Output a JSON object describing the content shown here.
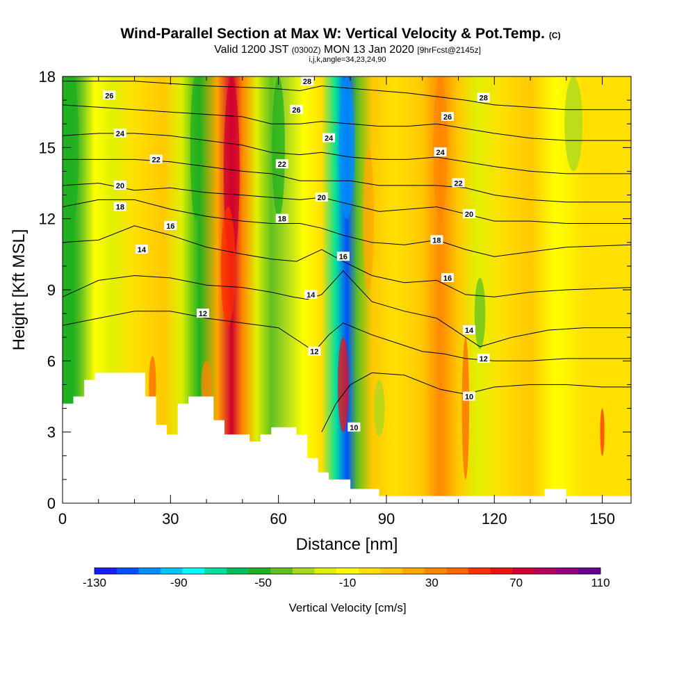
{
  "chart_data": {
    "type": "heatmap",
    "title": "Wind-Parallel Section at Max W: Vertical Velocity & Pot.Temp.",
    "title_mark": "(C)",
    "subtitle_parts": [
      "Valid 1200 JST",
      "(0300Z)",
      "MON 13 Jan 2020",
      "[9hrFcst@2145z]"
    ],
    "subtitle2": "i,j,k,angle=34,23,24,90",
    "xlabel": "Distance [nm]",
    "ylabel": "Height [Kft MSL]",
    "xlim": [
      0,
      158
    ],
    "ylim": [
      0,
      18
    ],
    "xticks": [
      "0",
      "30",
      "60",
      "90",
      "120",
      "150"
    ],
    "yticks": [
      "0",
      "3",
      "6",
      "9",
      "12",
      "15",
      "18"
    ],
    "x_tick_values": [
      0,
      30,
      60,
      90,
      120,
      150
    ],
    "y_tick_values": [
      0,
      3,
      6,
      9,
      12,
      15,
      18
    ],
    "colorbar": {
      "title": "Vertical Velocity [cm/s]",
      "ticks": [
        "-130",
        "-90",
        "-50",
        "-10",
        "30",
        "70",
        "110"
      ],
      "colors": [
        "#1a1aff",
        "#0050ff",
        "#0090ff",
        "#00c8ff",
        "#00ffff",
        "#00e0a0",
        "#00c060",
        "#20b020",
        "#60c020",
        "#a8d820",
        "#e0f000",
        "#ffff00",
        "#ffe000",
        "#ffc800",
        "#ffa800",
        "#ff8800",
        "#ff6800",
        "#ff3000",
        "#f01010",
        "#d00030",
        "#b00060",
        "#900080",
        "#6a0090"
      ]
    },
    "velocity_columns": [
      {
        "x": 1,
        "v": -50
      },
      {
        "x": 3,
        "v": -55
      },
      {
        "x": 5,
        "v": -45
      },
      {
        "x": 9,
        "v": -10
      },
      {
        "x": 14,
        "v": -20
      },
      {
        "x": 20,
        "v": 5
      },
      {
        "x": 28,
        "v": 10
      },
      {
        "x": 33,
        "v": -20
      },
      {
        "x": 38,
        "v": -50
      },
      {
        "x": 43,
        "v": 20
      },
      {
        "x": 47,
        "v": 70
      },
      {
        "x": 50,
        "v": 30
      },
      {
        "x": 54,
        "v": -20
      },
      {
        "x": 58,
        "v": -45
      },
      {
        "x": 62,
        "v": -35
      },
      {
        "x": 67,
        "v": -10
      },
      {
        "x": 72,
        "v": 5
      },
      {
        "x": 76,
        "v": -70
      },
      {
        "x": 79,
        "v": -110
      },
      {
        "x": 82,
        "v": -40
      },
      {
        "x": 86,
        "v": 10
      },
      {
        "x": 92,
        "v": 0
      },
      {
        "x": 100,
        "v": 15
      },
      {
        "x": 105,
        "v": 35
      },
      {
        "x": 110,
        "v": 10
      },
      {
        "x": 115,
        "v": -20
      },
      {
        "x": 122,
        "v": 0
      },
      {
        "x": 130,
        "v": 10
      },
      {
        "x": 137,
        "v": -15
      },
      {
        "x": 145,
        "v": 5
      },
      {
        "x": 152,
        "v": 0
      },
      {
        "x": 158,
        "v": 5
      }
    ],
    "terrain": [
      [
        0,
        4.2
      ],
      [
        3,
        4.2
      ],
      [
        3,
        4.5
      ],
      [
        6,
        4.5
      ],
      [
        6,
        5.2
      ],
      [
        9,
        5.2
      ],
      [
        9,
        5.5
      ],
      [
        23,
        5.5
      ],
      [
        23,
        4.5
      ],
      [
        26,
        4.5
      ],
      [
        26,
        3.3
      ],
      [
        29,
        3.3
      ],
      [
        29,
        2.9
      ],
      [
        32,
        2.9
      ],
      [
        32,
        4.2
      ],
      [
        35,
        4.2
      ],
      [
        35,
        4.5
      ],
      [
        42,
        4.5
      ],
      [
        42,
        3.5
      ],
      [
        45,
        3.5
      ],
      [
        45,
        2.9
      ],
      [
        52,
        2.9
      ],
      [
        52,
        2.6
      ],
      [
        55,
        2.6
      ],
      [
        55,
        2.9
      ],
      [
        58,
        2.9
      ],
      [
        58,
        3.2
      ],
      [
        65,
        3.2
      ],
      [
        65,
        2.9
      ],
      [
        68,
        2.9
      ],
      [
        68,
        1.9
      ],
      [
        71,
        1.9
      ],
      [
        71,
        1.3
      ],
      [
        74,
        1.3
      ],
      [
        74,
        1.0
      ],
      [
        80,
        1.0
      ],
      [
        80,
        0.6
      ],
      [
        88,
        0.6
      ],
      [
        88,
        0.3
      ],
      [
        134,
        0.3
      ],
      [
        134,
        0.6
      ],
      [
        140,
        0.6
      ],
      [
        140,
        0.3
      ],
      [
        158,
        0.3
      ]
    ],
    "theta_contours": [
      {
        "label": "10",
        "points": [
          [
            72,
            3
          ],
          [
            76,
            4.2
          ],
          [
            80,
            5.0
          ],
          [
            86,
            5.5
          ],
          [
            95,
            5.4
          ],
          [
            105,
            4.8
          ],
          [
            112,
            4.6
          ],
          [
            120,
            4.9
          ],
          [
            130,
            5.0
          ],
          [
            140,
            5.0
          ],
          [
            150,
            4.9
          ],
          [
            158,
            4.9
          ]
        ]
      },
      {
        "label": "12",
        "points": [
          [
            0,
            7.5
          ],
          [
            10,
            7.8
          ],
          [
            20,
            8.1
          ],
          [
            30,
            8.1
          ],
          [
            40,
            7.8
          ],
          [
            50,
            7.6
          ],
          [
            60,
            7.4
          ],
          [
            66,
            6.8
          ],
          [
            70,
            6.4
          ],
          [
            74,
            7.1
          ],
          [
            78,
            7.6
          ],
          [
            86,
            7.1
          ],
          [
            92,
            6.8
          ],
          [
            100,
            6.4
          ],
          [
            106,
            6.3
          ],
          [
            112,
            6.1
          ],
          [
            120,
            6.0
          ],
          [
            130,
            6.0
          ],
          [
            140,
            6.1
          ],
          [
            150,
            6.1
          ],
          [
            158,
            6.1
          ]
        ]
      },
      {
        "label": "14",
        "points": [
          [
            0,
            8.7
          ],
          [
            10,
            9.4
          ],
          [
            20,
            9.6
          ],
          [
            30,
            9.5
          ],
          [
            40,
            9.2
          ],
          [
            50,
            9.1
          ],
          [
            58,
            8.9
          ],
          [
            64,
            8.7
          ],
          [
            68,
            8.6
          ],
          [
            72,
            8.8
          ],
          [
            78,
            9.8
          ],
          [
            86,
            8.5
          ],
          [
            95,
            8.1
          ],
          [
            104,
            7.8
          ],
          [
            110,
            7.2
          ],
          [
            116,
            6.6
          ],
          [
            125,
            7.0
          ],
          [
            135,
            7.3
          ],
          [
            145,
            7.4
          ],
          [
            158,
            7.4
          ]
        ]
      },
      {
        "label": "16",
        "points": [
          [
            0,
            11.0
          ],
          [
            10,
            11.1
          ],
          [
            20,
            11.7
          ],
          [
            30,
            11.3
          ],
          [
            40,
            10.8
          ],
          [
            50,
            10.5
          ],
          [
            58,
            10.3
          ],
          [
            65,
            10.2
          ],
          [
            72,
            10.7
          ],
          [
            78,
            10.2
          ],
          [
            86,
            9.6
          ],
          [
            95,
            9.3
          ],
          [
            104,
            9.4
          ],
          [
            112,
            8.8
          ],
          [
            120,
            8.7
          ],
          [
            130,
            8.9
          ],
          [
            140,
            9.0
          ],
          [
            158,
            9.1
          ]
        ]
      },
      {
        "label": "18",
        "points": [
          [
            0,
            12.5
          ],
          [
            10,
            12.8
          ],
          [
            20,
            12.8
          ],
          [
            30,
            12.4
          ],
          [
            40,
            12.1
          ],
          [
            50,
            11.9
          ],
          [
            58,
            11.8
          ],
          [
            66,
            11.8
          ],
          [
            72,
            11.6
          ],
          [
            78,
            11.3
          ],
          [
            86,
            11.0
          ],
          [
            95,
            10.9
          ],
          [
            104,
            11.1
          ],
          [
            112,
            10.7
          ],
          [
            120,
            10.4
          ],
          [
            130,
            10.6
          ],
          [
            140,
            10.8
          ],
          [
            158,
            10.9
          ]
        ]
      },
      {
        "label": "20",
        "points": [
          [
            0,
            13.4
          ],
          [
            10,
            13.5
          ],
          [
            20,
            13.2
          ],
          [
            30,
            13.3
          ],
          [
            40,
            13.1
          ],
          [
            50,
            13.0
          ],
          [
            58,
            12.9
          ],
          [
            66,
            12.8
          ],
          [
            72,
            12.9
          ],
          [
            80,
            12.6
          ],
          [
            88,
            12.3
          ],
          [
            96,
            12.4
          ],
          [
            104,
            12.5
          ],
          [
            112,
            12.2
          ],
          [
            120,
            11.9
          ],
          [
            130,
            11.9
          ],
          [
            140,
            11.8
          ],
          [
            158,
            11.8
          ]
        ]
      },
      {
        "label": "22",
        "points": [
          [
            0,
            14.5
          ],
          [
            10,
            14.5
          ],
          [
            20,
            14.5
          ],
          [
            30,
            14.4
          ],
          [
            40,
            14.2
          ],
          [
            50,
            14.0
          ],
          [
            58,
            13.9
          ],
          [
            66,
            13.6
          ],
          [
            72,
            13.6
          ],
          [
            80,
            13.6
          ],
          [
            88,
            13.4
          ],
          [
            96,
            13.4
          ],
          [
            104,
            13.4
          ],
          [
            112,
            13.3
          ],
          [
            120,
            13.0
          ],
          [
            130,
            12.8
          ],
          [
            140,
            12.7
          ],
          [
            158,
            12.7
          ]
        ]
      },
      {
        "label": "24",
        "points": [
          [
            0,
            15.5
          ],
          [
            10,
            15.6
          ],
          [
            20,
            15.6
          ],
          [
            30,
            15.5
          ],
          [
            40,
            15.3
          ],
          [
            50,
            15.1
          ],
          [
            58,
            14.8
          ],
          [
            66,
            14.7
          ],
          [
            72,
            14.8
          ],
          [
            80,
            14.6
          ],
          [
            88,
            14.5
          ],
          [
            96,
            14.5
          ],
          [
            104,
            14.6
          ],
          [
            112,
            14.4
          ],
          [
            120,
            14.2
          ],
          [
            130,
            14.0
          ],
          [
            140,
            13.9
          ],
          [
            158,
            13.9
          ]
        ]
      },
      {
        "label": "26",
        "points": [
          [
            0,
            16.8
          ],
          [
            10,
            16.7
          ],
          [
            20,
            16.6
          ],
          [
            30,
            16.5
          ],
          [
            40,
            16.4
          ],
          [
            50,
            16.3
          ],
          [
            58,
            16.0
          ],
          [
            66,
            16.0
          ],
          [
            72,
            16.1
          ],
          [
            80,
            16.0
          ],
          [
            88,
            15.9
          ],
          [
            96,
            15.9
          ],
          [
            104,
            16.0
          ],
          [
            112,
            15.8
          ],
          [
            120,
            15.6
          ],
          [
            130,
            15.4
          ],
          [
            140,
            15.3
          ],
          [
            158,
            15.3
          ]
        ]
      },
      {
        "label": "28",
        "points": [
          [
            0,
            17.8
          ],
          [
            20,
            17.8
          ],
          [
            40,
            17.6
          ],
          [
            58,
            17.5
          ],
          [
            66,
            17.4
          ],
          [
            72,
            17.6
          ],
          [
            80,
            17.5
          ],
          [
            96,
            17.3
          ],
          [
            112,
            17.0
          ],
          [
            120,
            16.8
          ],
          [
            130,
            16.7
          ],
          [
            140,
            16.6
          ],
          [
            158,
            16.6
          ]
        ]
      }
    ],
    "contour_labels": [
      {
        "text": "26",
        "x": 13,
        "y": 17.2
      },
      {
        "text": "24",
        "x": 16,
        "y": 15.6
      },
      {
        "text": "22",
        "x": 26,
        "y": 14.5
      },
      {
        "text": "20",
        "x": 16,
        "y": 13.4
      },
      {
        "text": "18",
        "x": 16,
        "y": 12.5
      },
      {
        "text": "16",
        "x": 30,
        "y": 11.7
      },
      {
        "text": "14",
        "x": 22,
        "y": 10.7
      },
      {
        "text": "12",
        "x": 39,
        "y": 8.0
      },
      {
        "text": "28",
        "x": 68,
        "y": 17.8
      },
      {
        "text": "26",
        "x": 65,
        "y": 16.6
      },
      {
        "text": "24",
        "x": 74,
        "y": 15.4
      },
      {
        "text": "22",
        "x": 61,
        "y": 14.3
      },
      {
        "text": "20",
        "x": 72,
        "y": 12.9
      },
      {
        "text": "18",
        "x": 61,
        "y": 12.0
      },
      {
        "text": "16",
        "x": 78,
        "y": 10.4
      },
      {
        "text": "14",
        "x": 69,
        "y": 8.8
      },
      {
        "text": "12",
        "x": 70,
        "y": 6.4
      },
      {
        "text": "10",
        "x": 81,
        "y": 3.2
      },
      {
        "text": "28",
        "x": 117,
        "y": 17.1
      },
      {
        "text": "26",
        "x": 107,
        "y": 16.3
      },
      {
        "text": "24",
        "x": 105,
        "y": 14.8
      },
      {
        "text": "22",
        "x": 110,
        "y": 13.5
      },
      {
        "text": "20",
        "x": 113,
        "y": 12.2
      },
      {
        "text": "18",
        "x": 104,
        "y": 11.1
      },
      {
        "text": "16",
        "x": 107,
        "y": 9.5
      },
      {
        "text": "14",
        "x": 113,
        "y": 7.3
      },
      {
        "text": "12",
        "x": 117,
        "y": 6.1
      },
      {
        "text": "10",
        "x": 113,
        "y": 4.5
      }
    ]
  }
}
